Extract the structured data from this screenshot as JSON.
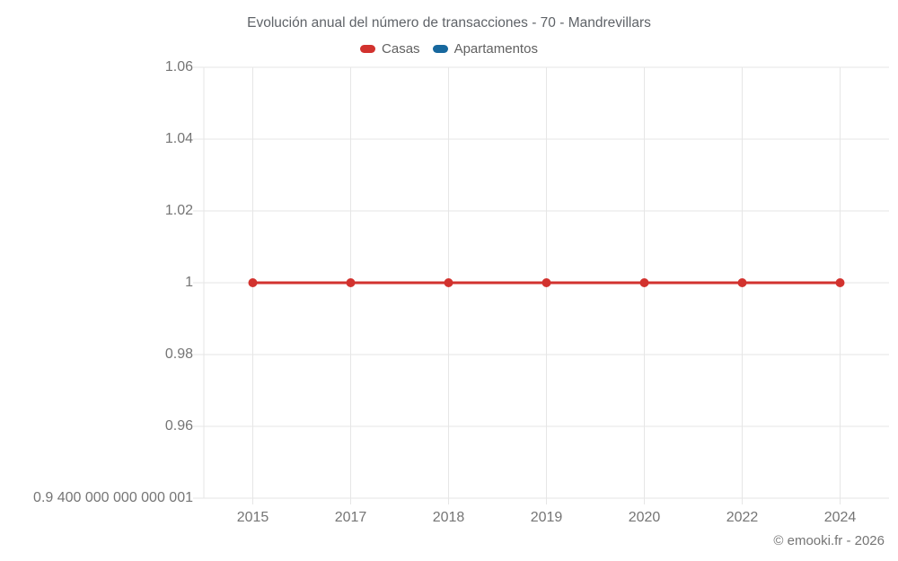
{
  "header": {
    "title": "Evolución anual del número de transacciones - 70 - Mandrevillars",
    "legend": {
      "items": [
        {
          "label": "Casas",
          "color": "#d2322e"
        },
        {
          "label": "Apartamentos",
          "color": "#17689e"
        }
      ]
    }
  },
  "footer": {
    "attribution": "© emooki.fr - 2026"
  },
  "chart_data": {
    "type": "line",
    "title": "Evolución anual del número de transacciones - 70 - Mandrevillars",
    "categories": [
      "2015",
      "2017",
      "2018",
      "2019",
      "2020",
      "2022",
      "2024"
    ],
    "series": [
      {
        "name": "Casas",
        "color": "#d2322e",
        "values": [
          1,
          1,
          1,
          1,
          1,
          1,
          1
        ]
      },
      {
        "name": "Apartamentos",
        "color": "#17689e",
        "values": []
      }
    ],
    "xlabel": "",
    "ylabel": "",
    "ylim": [
      0.9400000000000001,
      1.06
    ],
    "y_ticks": [
      {
        "label": "1.06",
        "value": 1.06
      },
      {
        "label": "1.04",
        "value": 1.04
      },
      {
        "label": "1.02",
        "value": 1.02
      },
      {
        "label": "1",
        "value": 1
      },
      {
        "label": "0.98",
        "value": 0.98
      },
      {
        "label": "0.96",
        "value": 0.96
      },
      {
        "label": "0.9 400 000 000 000 001",
        "value": 0.9400000000000001
      }
    ],
    "grid": true,
    "legend_position": "top",
    "grid_color": "#e6e6e6",
    "marker_radius": 5,
    "line_width": 3
  }
}
